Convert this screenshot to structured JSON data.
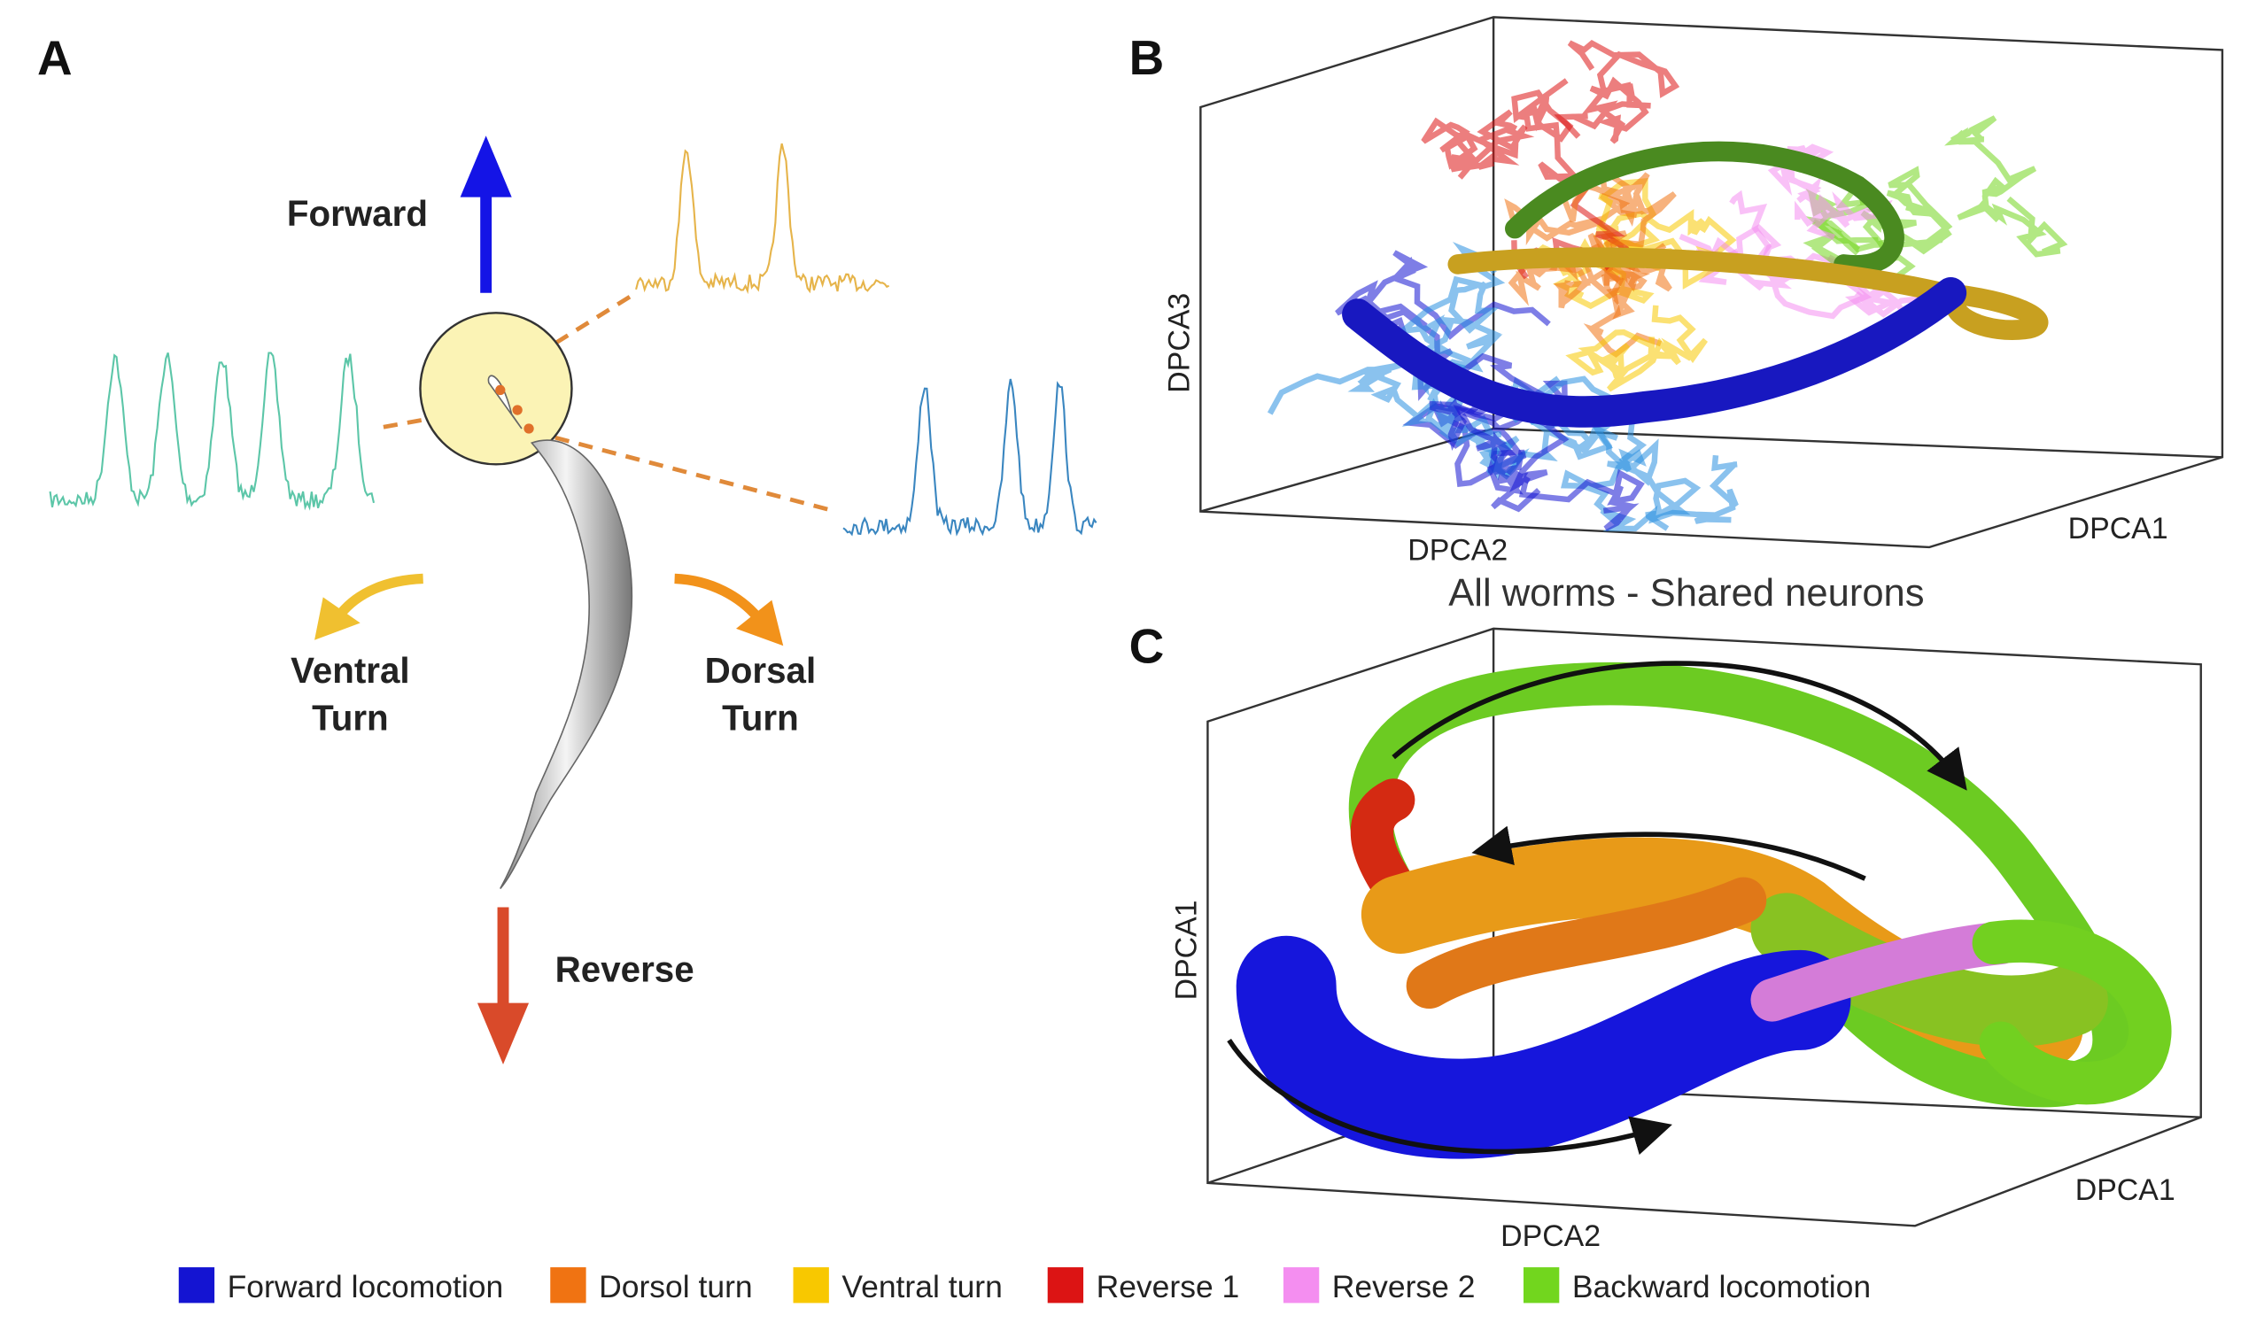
{
  "panels": {
    "a": "A",
    "b": "B",
    "c": "C"
  },
  "panel_a": {
    "forward": "Forward",
    "ventral": [
      "Ventral",
      "Turn"
    ],
    "dorsal": [
      "Dorsal",
      "Turn"
    ],
    "reverse": "Reverse"
  },
  "panel_b": {
    "axes": {
      "vertical": "DPCA3",
      "left": "DPCA2",
      "right": "DPCA1"
    },
    "title": "All worms - Shared neurons"
  },
  "panel_c": {
    "axes": {
      "vertical": "DPCA1",
      "left": "DPCA2",
      "right": "DPCA1"
    }
  },
  "legend": [
    {
      "name": "Forward locomotion",
      "color": "#1414d2"
    },
    {
      "name": "Dorsol turn",
      "color": "#f07312"
    },
    {
      "name": "Ventral turn",
      "color": "#f8c800"
    },
    {
      "name": "Reverse 1",
      "color": "#dc1414"
    },
    {
      "name": "Reverse 2",
      "color": "#f48ef0"
    },
    {
      "name": "Backward locomotion",
      "color": "#72d61e"
    }
  ]
}
